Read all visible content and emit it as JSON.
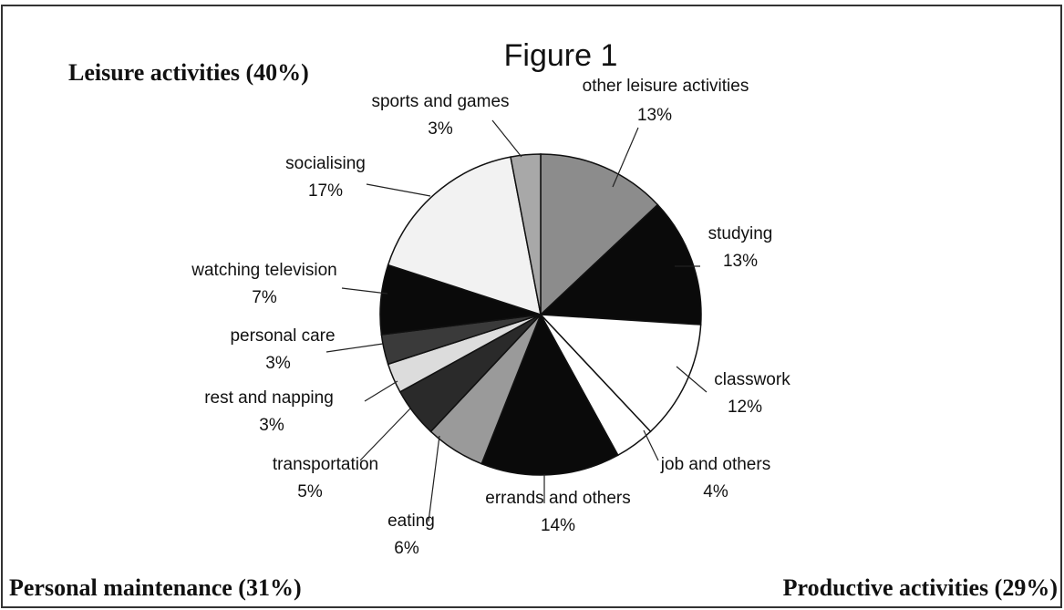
{
  "chart_data": {
    "type": "pie",
    "title": "Figure 1",
    "categories": [
      "other leisure activities",
      "studying",
      "classwork",
      "job and others",
      "errands and others",
      "eating",
      "transportation",
      "rest and napping",
      "personal care",
      "watching television",
      "socialising",
      "sports and games"
    ],
    "values": [
      13,
      13,
      12,
      4,
      14,
      6,
      5,
      3,
      3,
      7,
      17,
      3
    ],
    "value_labels": [
      "13%",
      "13%",
      "12%",
      "4%",
      "14%",
      "6%",
      "5%",
      "3%",
      "3%",
      "7%",
      "17%",
      "3%"
    ],
    "colors": [
      "#8c8c8c",
      "#0a0a0a",
      "#ffffff",
      "#ffffff",
      "#0a0a0a",
      "#9a9a9a",
      "#2a2a2a",
      "#dcdcdc",
      "#3a3a3a",
      "#0a0a0a",
      "#f2f2f2",
      "#a8a8a8"
    ],
    "annotations": [
      "Leisure activities (40%)",
      "Personal maintenance (31%)",
      "Productive activities (29%)"
    ]
  }
}
